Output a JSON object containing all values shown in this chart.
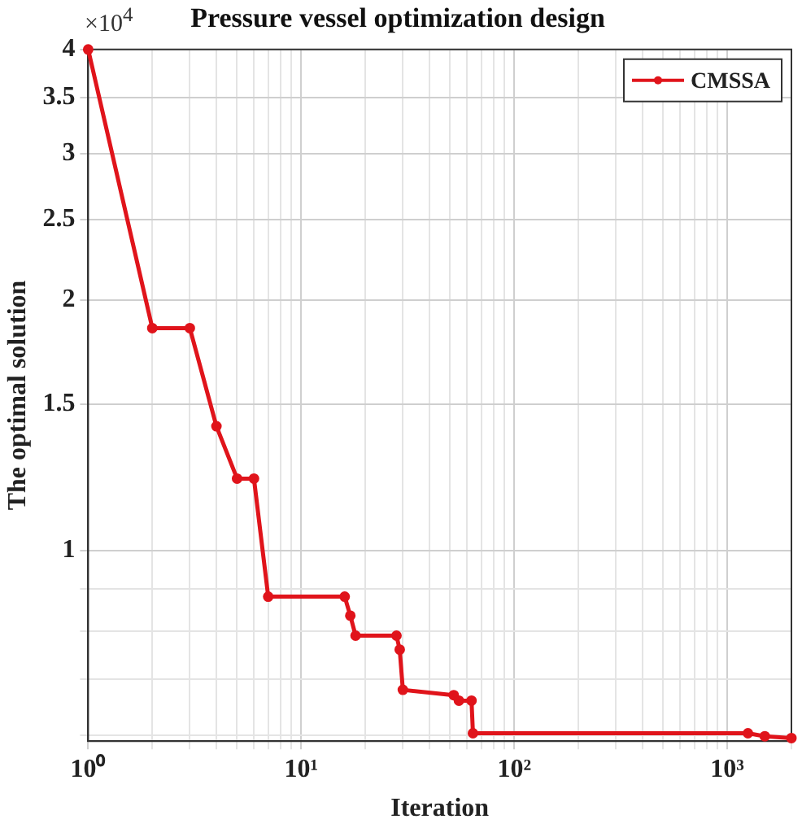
{
  "chart_data": {
    "type": "line",
    "title": "Pressure vessel optimization design",
    "xlabel": "Iteration",
    "ylabel": "The optimal solution",
    "annotations": [
      "×10$^{4}$"
    ],
    "x": [
      1,
      2,
      3,
      4,
      5,
      6,
      7,
      16,
      17,
      18,
      28,
      29,
      30,
      52,
      55,
      63,
      64,
      1250,
      1500,
      2000
    ],
    "series": [
      {
        "name": "CMSSA",
        "color": "#e0141b",
        "values": [
          4,
          1.85,
          1.85,
          1.41,
          1.22,
          1.22,
          0.88,
          0.88,
          0.835,
          0.79,
          0.79,
          0.76,
          0.68,
          0.67,
          0.66,
          0.66,
          0.603,
          0.603,
          0.598,
          0.595
        ]
      }
    ],
    "log": "xy",
    "xlim": [
      1,
      2000
    ],
    "ylim": [
      0.59,
      4
    ],
    "xticks": [
      {
        "value": 1,
        "label": "10⁰"
      },
      {
        "value": 2,
        "label": null
      },
      {
        "value": 3,
        "label": null
      },
      {
        "value": 4,
        "label": null
      },
      {
        "value": 5,
        "label": null
      },
      {
        "value": 6,
        "label": null
      },
      {
        "value": 7,
        "label": null
      },
      {
        "value": 8,
        "label": null
      },
      {
        "value": 9,
        "label": null
      },
      {
        "value": 10,
        "label": "10¹"
      },
      {
        "value": 20,
        "label": null
      },
      {
        "value": 30,
        "label": null
      },
      {
        "value": 40,
        "label": null
      },
      {
        "value": 50,
        "label": null
      },
      {
        "value": 60,
        "label": null
      },
      {
        "value": 70,
        "label": null
      },
      {
        "value": 80,
        "label": null
      },
      {
        "value": 90,
        "label": null
      },
      {
        "value": 100,
        "label": "10²"
      },
      {
        "value": 200,
        "label": null
      },
      {
        "value": 300,
        "label": null
      },
      {
        "value": 400,
        "label": null
      },
      {
        "value": 500,
        "label": null
      },
      {
        "value": 600,
        "label": null
      },
      {
        "value": 700,
        "label": null
      },
      {
        "value": 800,
        "label": null
      },
      {
        "value": 900,
        "label": null
      },
      {
        "value": 1000,
        "label": "10³"
      },
      {
        "value": 2000,
        "label": null
      }
    ],
    "yticks": [
      {
        "value": 0.6,
        "label": null
      },
      {
        "value": 0.7,
        "label": null
      },
      {
        "value": 0.8,
        "label": null
      },
      {
        "value": 0.9,
        "label": null
      },
      1,
      1.5,
      2,
      2.5,
      3,
      3.5,
      4
    ],
    "grid": true,
    "legend": "top right",
    "marker": "circle",
    "line_style": "solid"
  }
}
